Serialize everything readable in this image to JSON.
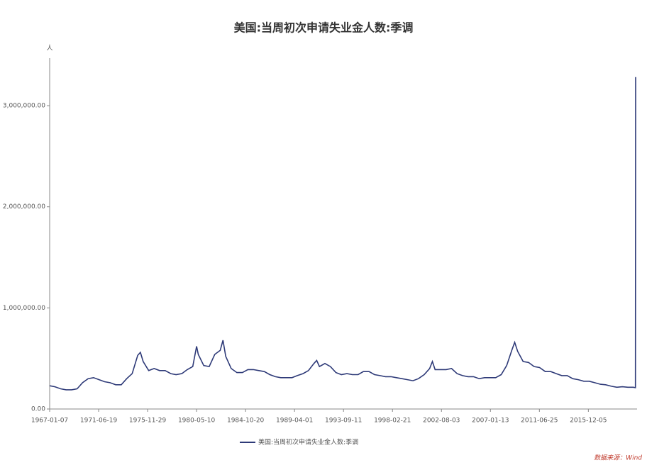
{
  "chart_data": {
    "type": "line",
    "title": "美国:当周初次申请失业金人数:季调",
    "y_unit": "人",
    "source": "数据来源：Wind",
    "x": [
      "1967-01-07",
      "1967-07-01",
      "1968-01-06",
      "1968-07-06",
      "1969-01-04",
      "1969-07-05",
      "1970-01-03",
      "1970-07-04",
      "1971-01-02",
      "1971-07-03",
      "1972-01-01",
      "1972-07-01",
      "1973-01-06",
      "1973-07-07",
      "1974-01-05",
      "1974-07-06",
      "1975-01-04",
      "1975-04-05",
      "1975-07-05",
      "1976-01-03",
      "1976-07-03",
      "1977-01-01",
      "1977-07-02",
      "1978-01-07",
      "1978-07-01",
      "1979-01-06",
      "1979-07-07",
      "1980-01-05",
      "1980-05-10",
      "1980-07-05",
      "1981-01-03",
      "1981-07-04",
      "1982-01-02",
      "1982-07-03",
      "1982-10-02",
      "1983-01-01",
      "1983-07-02",
      "1984-01-07",
      "1984-07-07",
      "1985-01-05",
      "1985-07-06",
      "1986-01-04",
      "1986-07-05",
      "1987-01-03",
      "1987-07-04",
      "1988-01-02",
      "1988-07-02",
      "1989-01-07",
      "1989-07-01",
      "1990-01-06",
      "1990-07-07",
      "1991-01-05",
      "1991-04-06",
      "1991-07-06",
      "1992-01-04",
      "1992-07-04",
      "1993-01-02",
      "1993-07-03",
      "1994-01-01",
      "1994-07-02",
      "1995-01-07",
      "1995-07-01",
      "1996-01-06",
      "1996-07-06",
      "1997-01-04",
      "1997-07-05",
      "1998-01-03",
      "1998-07-04",
      "1999-01-02",
      "1999-07-03",
      "2000-01-01",
      "2000-07-01",
      "2001-01-06",
      "2001-07-07",
      "2001-10-06",
      "2002-01-05",
      "2002-07-06",
      "2003-01-04",
      "2003-07-05",
      "2004-01-03",
      "2004-07-03",
      "2005-01-01",
      "2005-07-02",
      "2006-01-07",
      "2006-07-01",
      "2007-01-06",
      "2007-07-07",
      "2008-01-05",
      "2008-07-05",
      "2009-01-03",
      "2009-03-28",
      "2009-07-04",
      "2010-01-02",
      "2010-07-03",
      "2011-01-01",
      "2011-07-02",
      "2012-01-07",
      "2012-07-07",
      "2013-01-05",
      "2013-07-06",
      "2014-01-04",
      "2014-07-05",
      "2015-01-03",
      "2015-07-04",
      "2016-01-02",
      "2016-07-02",
      "2017-01-07",
      "2017-07-01",
      "2018-01-06",
      "2018-07-07",
      "2019-01-05",
      "2019-07-06",
      "2020-01-04",
      "2020-03-14",
      "2020-03-21"
    ],
    "series": [
      {
        "name": "美国:当周初次申请失业金人数:季调",
        "color": "#2e3a78",
        "values": [
          230000,
          220000,
          200000,
          190000,
          190000,
          200000,
          260000,
          300000,
          310000,
          290000,
          270000,
          260000,
          240000,
          240000,
          300000,
          350000,
          530000,
          560000,
          470000,
          380000,
          400000,
          380000,
          380000,
          350000,
          340000,
          350000,
          390000,
          420000,
          620000,
          540000,
          430000,
          420000,
          540000,
          580000,
          680000,
          520000,
          400000,
          360000,
          360000,
          390000,
          390000,
          380000,
          370000,
          340000,
          320000,
          310000,
          310000,
          310000,
          330000,
          350000,
          380000,
          450000,
          480000,
          420000,
          450000,
          420000,
          360000,
          340000,
          350000,
          340000,
          340000,
          370000,
          370000,
          340000,
          330000,
          320000,
          320000,
          310000,
          300000,
          290000,
          280000,
          300000,
          340000,
          400000,
          470000,
          390000,
          390000,
          390000,
          400000,
          350000,
          330000,
          320000,
          320000,
          300000,
          310000,
          310000,
          310000,
          340000,
          430000,
          590000,
          660000,
          570000,
          470000,
          460000,
          420000,
          410000,
          370000,
          370000,
          350000,
          330000,
          330000,
          300000,
          290000,
          275000,
          275000,
          260000,
          245000,
          240000,
          225000,
          215000,
          220000,
          215000,
          215000,
          211000,
          3283000
        ]
      }
    ],
    "xlim": [
      "1967-01-07",
      "2020-03-21"
    ],
    "xticks": [
      "1967-01-07",
      "1971-06-19",
      "1975-11-29",
      "1980-05-10",
      "1984-10-20",
      "1989-04-01",
      "1993-09-11",
      "1998-02-21",
      "2002-08-03",
      "2007-01-13",
      "2011-06-25",
      "2015-12-05"
    ],
    "ylim": [
      0,
      3470000
    ],
    "yticks": [
      {
        "value": 0,
        "label": "0.00"
      },
      {
        "value": 1000000,
        "label": "1,000,000.00"
      },
      {
        "value": 2000000,
        "label": "2,000,000.00"
      },
      {
        "value": 3000000,
        "label": "3,000,000.00"
      }
    ],
    "grid": false,
    "legend": "bottom"
  }
}
